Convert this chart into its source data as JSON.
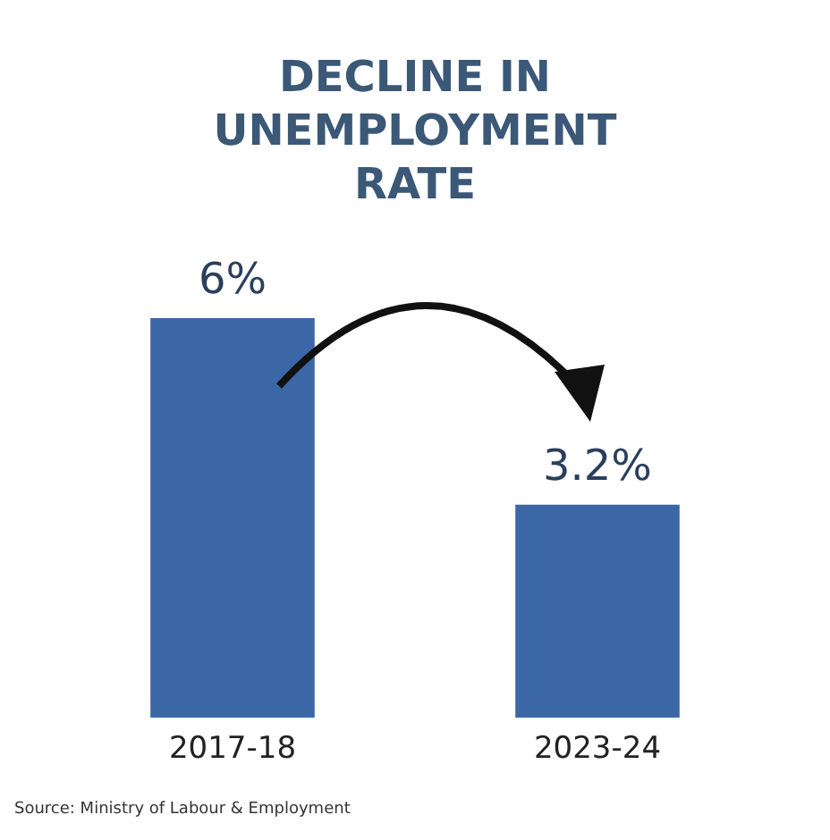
{
  "chart_data": {
    "type": "bar",
    "title": "DECLINE IN UNEMPLOYMENT RATE",
    "categories": [
      "2017-18",
      "2023-24"
    ],
    "values": [
      6,
      3.2
    ],
    "value_labels": [
      "6%",
      "3.2%"
    ],
    "color": "#3b67a6",
    "grid": false,
    "legend": false,
    "tick_labels": "x",
    "annotations": [
      "Source: Ministry of Labour & Employment"
    ]
  }
}
